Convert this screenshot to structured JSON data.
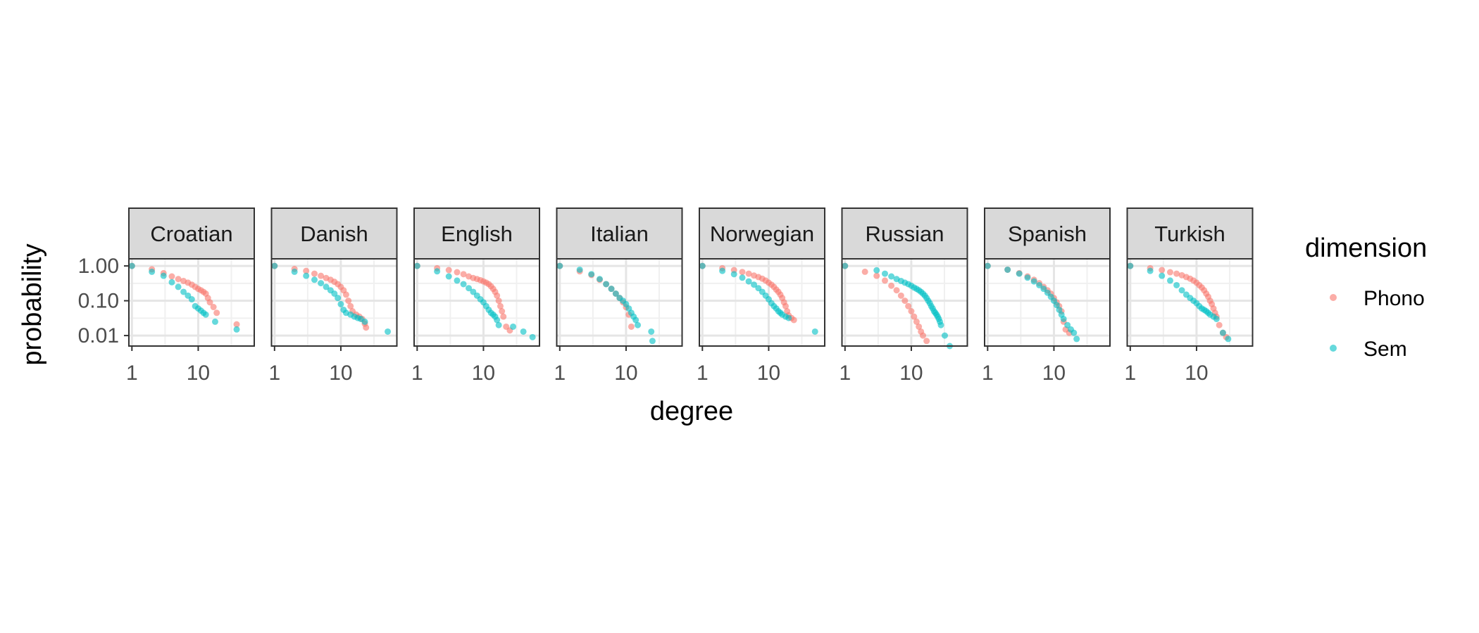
{
  "chart_data": {
    "type": "scatter",
    "xlabel": "degree",
    "ylabel": "probability",
    "x_scale": "log10",
    "y_scale": "log10",
    "xlim": [
      0.9,
      70
    ],
    "ylim": [
      0.005,
      1.6
    ],
    "x_ticks": [
      1,
      10
    ],
    "x_tick_labels": [
      "1",
      "10"
    ],
    "y_ticks": [
      1,
      0.1,
      0.01
    ],
    "y_tick_labels": [
      "1.00",
      "0.10",
      "0.01"
    ],
    "grid": true,
    "legend": {
      "title": "dimension",
      "position": "right",
      "entries": [
        {
          "name": "Phono",
          "color": "#F8766D"
        },
        {
          "name": "Sem",
          "color": "#00BFC4"
        }
      ]
    },
    "panels": [
      {
        "name": "Croatian",
        "series": [
          {
            "name": "Phono",
            "x": [
              1,
              2,
              3,
              4,
              5,
              6,
              7,
              8,
              9,
              10,
              11,
              12,
              13,
              14,
              15,
              17,
              19,
              38
            ],
            "y": [
              1,
              0.8,
              0.62,
              0.5,
              0.42,
              0.37,
              0.33,
              0.29,
              0.25,
              0.22,
              0.2,
              0.18,
              0.16,
              0.12,
              0.09,
              0.066,
              0.045,
              0.021
            ]
          },
          {
            "name": "Sem",
            "x": [
              1,
              2,
              3,
              4,
              5,
              6,
              7,
              8,
              9,
              10,
              11,
              12,
              13,
              18,
              38
            ],
            "y": [
              1,
              0.68,
              0.52,
              0.34,
              0.25,
              0.18,
              0.14,
              0.11,
              0.07,
              0.06,
              0.052,
              0.045,
              0.04,
              0.025,
              0.015
            ]
          }
        ]
      },
      {
        "name": "Danish",
        "series": [
          {
            "name": "Phono",
            "x": [
              1,
              2,
              3,
              4,
              5,
              6,
              7,
              8,
              9,
              10,
              11,
              12,
              13,
              14,
              15,
              17,
              19,
              21,
              23,
              24
            ],
            "y": [
              1,
              0.82,
              0.72,
              0.6,
              0.52,
              0.45,
              0.4,
              0.35,
              0.3,
              0.25,
              0.2,
              0.15,
              0.1,
              0.07,
              0.05,
              0.04,
              0.035,
              0.03,
              0.022,
              0.017
            ]
          },
          {
            "name": "Sem",
            "x": [
              1,
              2,
              3,
              4,
              5,
              6,
              7,
              8,
              9,
              10,
              11,
              12,
              14,
              16,
              18,
              20,
              23,
              51
            ],
            "y": [
              1,
              0.68,
              0.52,
              0.4,
              0.32,
              0.25,
              0.2,
              0.16,
              0.12,
              0.08,
              0.055,
              0.045,
              0.04,
              0.035,
              0.032,
              0.03,
              0.025,
              0.013
            ]
          }
        ]
      },
      {
        "name": "English",
        "series": [
          {
            "name": "Phono",
            "x": [
              1,
              2,
              3,
              4,
              5,
              6,
              7,
              8,
              9,
              10,
              11,
              12,
              13,
              14,
              15,
              16,
              17,
              18,
              19,
              20,
              22,
              25
            ],
            "y": [
              1,
              0.86,
              0.76,
              0.66,
              0.58,
              0.5,
              0.45,
              0.42,
              0.39,
              0.36,
              0.33,
              0.3,
              0.26,
              0.22,
              0.18,
              0.14,
              0.1,
              0.07,
              0.05,
              0.035,
              0.018,
              0.014
            ]
          },
          {
            "name": "Sem",
            "x": [
              1,
              2,
              3,
              4,
              5,
              6,
              7,
              8,
              9,
              10,
              11,
              12,
              13,
              14,
              15,
              16,
              17,
              28,
              40,
              55
            ],
            "y": [
              1,
              0.7,
              0.5,
              0.38,
              0.3,
              0.23,
              0.18,
              0.14,
              0.11,
              0.09,
              0.07,
              0.055,
              0.045,
              0.04,
              0.035,
              0.028,
              0.02,
              0.018,
              0.013,
              0.009
            ]
          }
        ]
      },
      {
        "name": "Italian",
        "series": [
          {
            "name": "Phono",
            "x": [
              1,
              2,
              3,
              4,
              5,
              6,
              7,
              8,
              9,
              10,
              11,
              12
            ],
            "y": [
              1,
              0.7,
              0.55,
              0.4,
              0.3,
              0.22,
              0.16,
              0.12,
              0.09,
              0.065,
              0.04,
              0.018
            ]
          },
          {
            "name": "Sem",
            "x": [
              1,
              2,
              3,
              4,
              5,
              6,
              7,
              8,
              9,
              10,
              11,
              12,
              13,
              14,
              15,
              24,
              25
            ],
            "y": [
              1,
              0.78,
              0.58,
              0.42,
              0.3,
              0.22,
              0.16,
              0.12,
              0.1,
              0.08,
              0.06,
              0.045,
              0.035,
              0.028,
              0.02,
              0.013,
              0.007
            ]
          }
        ]
      },
      {
        "name": "Norwegian",
        "series": [
          {
            "name": "Phono",
            "x": [
              1,
              2,
              3,
              4,
              5,
              6,
              7,
              8,
              9,
              10,
              11,
              12,
              13,
              14,
              15,
              16,
              17,
              18,
              19,
              20,
              22,
              24
            ],
            "y": [
              1,
              0.86,
              0.76,
              0.67,
              0.6,
              0.53,
              0.48,
              0.43,
              0.38,
              0.33,
              0.29,
              0.25,
              0.21,
              0.18,
              0.15,
              0.12,
              0.09,
              0.07,
              0.05,
              0.038,
              0.032,
              0.028
            ]
          },
          {
            "name": "Sem",
            "x": [
              1,
              2,
              3,
              4,
              5,
              6,
              7,
              8,
              9,
              10,
              11,
              12,
              13,
              14,
              15,
              16,
              18,
              20,
              50
            ],
            "y": [
              1,
              0.72,
              0.58,
              0.46,
              0.36,
              0.29,
              0.23,
              0.18,
              0.14,
              0.11,
              0.085,
              0.07,
              0.06,
              0.05,
              0.045,
              0.04,
              0.035,
              0.032,
              0.013
            ]
          }
        ]
      },
      {
        "name": "Russian",
        "series": [
          {
            "name": "Phono",
            "x": [
              1,
              2,
              3,
              4,
              5,
              6,
              7,
              8,
              9,
              10,
              11,
              12,
              13,
              14,
              15,
              17
            ],
            "y": [
              1,
              0.68,
              0.52,
              0.38,
              0.27,
              0.2,
              0.14,
              0.1,
              0.07,
              0.05,
              0.035,
              0.025,
              0.018,
              0.013,
              0.01,
              0.007
            ]
          },
          {
            "name": "Sem",
            "x": [
              1,
              3,
              4,
              5,
              6,
              7,
              8,
              9,
              10,
              11,
              12,
              13,
              14,
              15,
              16,
              17,
              18,
              19,
              20,
              21,
              22,
              23,
              24,
              25,
              26,
              27,
              28,
              32,
              38
            ],
            "y": [
              1,
              0.75,
              0.6,
              0.5,
              0.42,
              0.37,
              0.33,
              0.3,
              0.27,
              0.24,
              0.22,
              0.2,
              0.18,
              0.16,
              0.14,
              0.12,
              0.1,
              0.085,
              0.07,
              0.06,
              0.05,
              0.045,
              0.04,
              0.035,
              0.03,
              0.025,
              0.02,
              0.01,
              0.005
            ]
          }
        ]
      },
      {
        "name": "Spanish",
        "series": [
          {
            "name": "Phono",
            "x": [
              1,
              2,
              3,
              4,
              5,
              6,
              7,
              8,
              9,
              10,
              11,
              12,
              13,
              14,
              15,
              17
            ],
            "y": [
              1,
              0.78,
              0.62,
              0.5,
              0.4,
              0.32,
              0.25,
              0.2,
              0.16,
              0.12,
              0.09,
              0.07,
              0.05,
              0.025,
              0.015,
              0.012
            ]
          },
          {
            "name": "Sem",
            "x": [
              1,
              2,
              3,
              4,
              5,
              6,
              7,
              8,
              9,
              10,
              11,
              12,
              13,
              14,
              16,
              18,
              20,
              22
            ],
            "y": [
              1,
              0.78,
              0.6,
              0.46,
              0.36,
              0.28,
              0.22,
              0.17,
              0.13,
              0.1,
              0.075,
              0.055,
              0.04,
              0.03,
              0.02,
              0.015,
              0.012,
              0.008
            ]
          }
        ]
      },
      {
        "name": "Turkish",
        "series": [
          {
            "name": "Phono",
            "x": [
              1,
              2,
              3,
              4,
              5,
              6,
              7,
              8,
              9,
              10,
              11,
              12,
              13,
              14,
              15,
              16,
              17,
              18,
              19,
              20,
              22,
              25,
              28
            ],
            "y": [
              1,
              0.86,
              0.76,
              0.66,
              0.6,
              0.54,
              0.48,
              0.43,
              0.38,
              0.33,
              0.28,
              0.24,
              0.2,
              0.16,
              0.13,
              0.1,
              0.08,
              0.06,
              0.045,
              0.035,
              0.02,
              0.012,
              0.009
            ]
          },
          {
            "name": "Sem",
            "x": [
              1,
              2,
              3,
              4,
              5,
              6,
              7,
              8,
              9,
              10,
              11,
              12,
              13,
              14,
              15,
              16,
              18,
              20,
              25,
              30
            ],
            "y": [
              1,
              0.72,
              0.52,
              0.38,
              0.28,
              0.2,
              0.15,
              0.12,
              0.1,
              0.085,
              0.07,
              0.06,
              0.055,
              0.05,
              0.045,
              0.04,
              0.035,
              0.03,
              0.012,
              0.008
            ]
          }
        ]
      }
    ]
  }
}
